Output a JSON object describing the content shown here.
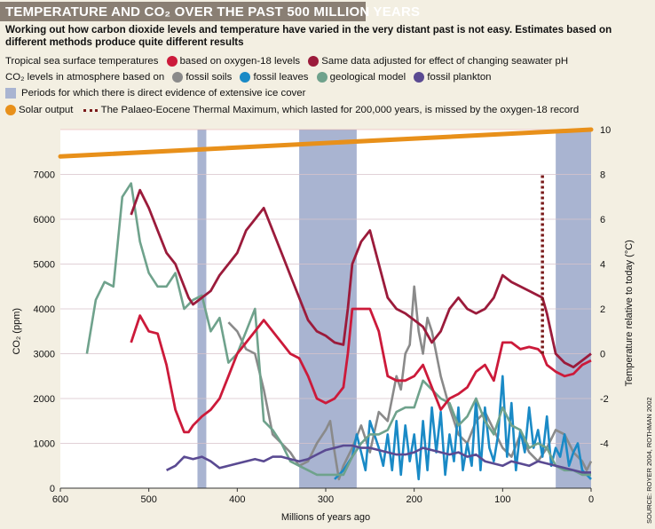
{
  "header": {
    "title": "TEMPERATURE AND CO₂ OVER THE PAST 500 MILLION YEARS",
    "subtitle": "Working out how carbon dioxide levels and temperature have varied in the very distant past is not easy. Estimates based on different methods produce quite different results"
  },
  "legend": {
    "row1_label": "Tropical sea surface temperatures",
    "oxygen": "based on oxygen-18 levels",
    "adjusted": "Same data adjusted for effect of changing seawater pH",
    "row2_label": "CO₂ levels in atmosphere based on",
    "soils": "fossil soils",
    "leaves": "fossil leaves",
    "geo": "geological model",
    "plankton": "fossil plankton",
    "ice": "Periods for which there is direct evidence of extensive ice cover",
    "solar": "Solar output",
    "petm": "The Palaeo-Eocene Thermal Maximum, which lasted for 200,000 years, is missed by the oxygen-18 record"
  },
  "source": "SOURCE: ROYER 2004, ROTHMAN 2002",
  "colors": {
    "oxygen": "#cc1a3a",
    "adjusted": "#9b1b3b",
    "soils": "#8a8a8a",
    "leaves": "#1a8ac6",
    "geo": "#6fa28c",
    "plankton": "#5a4a92",
    "ice": "#a9b4d1",
    "solar": "#e8901a",
    "petm": "#7a1a1a",
    "banner": "#8a7f74"
  },
  "chart_data": {
    "type": "line",
    "xlabel": "Millions of years ago",
    "ylabel_left": "CO₂ (ppm)",
    "ylabel_right": "Temperature relative to today (°C)",
    "xlim": [
      600,
      0
    ],
    "ylim_left": [
      0,
      8000
    ],
    "ylim_right": [
      -6,
      10
    ],
    "x_ticks": [
      600,
      500,
      400,
      300,
      200,
      100,
      0
    ],
    "y_ticks_left": [
      0,
      1000,
      2000,
      3000,
      4000,
      5000,
      6000,
      7000
    ],
    "y_ticks_right": [
      -4,
      -2,
      0,
      2,
      4,
      6,
      8,
      10
    ],
    "ice_periods": [
      [
        445,
        435
      ],
      [
        330,
        265
      ],
      [
        40,
        0
      ]
    ],
    "petm": {
      "x": 55,
      "y_range": [
        0,
        8
      ]
    },
    "temperature_series": [
      {
        "name": "based on oxygen-18 levels",
        "color_key": "oxygen",
        "x": [
          520,
          510,
          500,
          490,
          480,
          470,
          460,
          455,
          450,
          440,
          430,
          420,
          410,
          400,
          390,
          380,
          370,
          360,
          350,
          340,
          330,
          320,
          310,
          300,
          290,
          280,
          275,
          270,
          260,
          250,
          240,
          230,
          220,
          210,
          200,
          190,
          180,
          170,
          160,
          150,
          140,
          130,
          120,
          110,
          100,
          90,
          80,
          70,
          60,
          55,
          50,
          40,
          30,
          20,
          10,
          0
        ],
        "y": [
          0.5,
          1.7,
          1.0,
          0.9,
          -0.5,
          -2.5,
          -3.5,
          -3.5,
          -3.2,
          -2.8,
          -2.5,
          -2.0,
          -1.0,
          0,
          0.5,
          1.0,
          1.5,
          1.0,
          0.5,
          0,
          -0.2,
          -1.0,
          -2.0,
          -2.2,
          -2.0,
          -1.5,
          0,
          2.0,
          2.0,
          2.0,
          1.0,
          -1.0,
          -1.2,
          -1.2,
          -1.0,
          -0.5,
          -1.5,
          -2.5,
          -2.0,
          -1.8,
          -1.5,
          -0.8,
          -0.5,
          -1.2,
          0.5,
          0.5,
          0.2,
          0.3,
          0.2,
          0.0,
          -0.5,
          -0.8,
          -1.0,
          -0.9,
          -0.5,
          -0.3
        ]
      },
      {
        "name": "Same data adjusted for effect of changing seawater pH",
        "color_key": "adjusted",
        "x": [
          520,
          510,
          500,
          490,
          480,
          470,
          460,
          455,
          450,
          440,
          430,
          420,
          410,
          400,
          390,
          380,
          370,
          360,
          350,
          340,
          330,
          320,
          310,
          300,
          290,
          280,
          275,
          270,
          260,
          250,
          240,
          230,
          220,
          210,
          200,
          190,
          180,
          170,
          160,
          150,
          140,
          130,
          120,
          110,
          100,
          90,
          80,
          70,
          60,
          55,
          50,
          40,
          30,
          20,
          10,
          0
        ],
        "y": [
          6.2,
          7.3,
          6.5,
          5.5,
          4.5,
          4.0,
          3.0,
          2.5,
          2.2,
          2.5,
          2.8,
          3.5,
          4.0,
          4.5,
          5.5,
          6.0,
          6.5,
          5.5,
          4.5,
          3.5,
          2.5,
          1.5,
          1.0,
          0.8,
          0.5,
          0.4,
          2.0,
          4.0,
          5.0,
          5.5,
          4.0,
          2.5,
          2.0,
          1.8,
          1.5,
          1.2,
          0.5,
          1.0,
          2.0,
          2.5,
          2.0,
          1.8,
          2.0,
          2.5,
          3.5,
          3.2,
          3.0,
          2.8,
          2.6,
          2.5,
          1.8,
          0,
          -0.4,
          -0.6,
          -0.3,
          0
        ]
      }
    ],
    "co2_series": [
      {
        "name": "fossil soils",
        "color_key": "soils",
        "x": [
          410,
          400,
          390,
          380,
          370,
          360,
          350,
          340,
          330,
          320,
          310,
          300,
          295,
          290,
          285,
          280,
          270,
          260,
          250,
          240,
          230,
          220,
          215,
          210,
          205,
          200,
          195,
          190,
          185,
          180,
          170,
          160,
          150,
          140,
          130,
          120,
          110,
          100,
          90,
          80,
          70,
          60,
          50,
          40,
          30,
          20,
          10,
          5,
          0
        ],
        "y": [
          3700,
          3500,
          3100,
          3000,
          2200,
          1200,
          1000,
          800,
          500,
          600,
          1000,
          1300,
          1500,
          800,
          200,
          500,
          900,
          1400,
          800,
          1700,
          1500,
          2500,
          2200,
          3000,
          3200,
          4500,
          3500,
          3000,
          3800,
          3500,
          2500,
          1800,
          1200,
          1000,
          1500,
          1700,
          1300,
          900,
          700,
          1200,
          800,
          600,
          900,
          1300,
          1200,
          800,
          600,
          400,
          600
        ]
      },
      {
        "name": "fossil leaves",
        "color_key": "leaves",
        "x": [
          290,
          280,
          270,
          265,
          260,
          255,
          250,
          240,
          235,
          230,
          225,
          220,
          215,
          210,
          205,
          200,
          195,
          190,
          185,
          180,
          175,
          170,
          165,
          160,
          155,
          150,
          145,
          140,
          135,
          130,
          125,
          120,
          115,
          110,
          105,
          100,
          95,
          90,
          85,
          80,
          75,
          70,
          65,
          60,
          55,
          50,
          45,
          40,
          35,
          30,
          25,
          20,
          15,
          10,
          5,
          0
        ],
        "y": [
          200,
          400,
          700,
          1200,
          800,
          400,
          1500,
          900,
          500,
          1200,
          400,
          1500,
          300,
          1400,
          600,
          1200,
          200,
          1500,
          400,
          1800,
          800,
          1700,
          300,
          1200,
          600,
          1800,
          400,
          1000,
          500,
          2000,
          400,
          1800,
          900,
          600,
          1200,
          2500,
          700,
          1900,
          400,
          1300,
          800,
          1800,
          900,
          1300,
          700,
          1600,
          500,
          900,
          700,
          1200,
          500,
          800,
          1000,
          400,
          300,
          200
        ]
      },
      {
        "name": "geological model",
        "color_key": "geo",
        "x": [
          570,
          560,
          550,
          540,
          530,
          520,
          510,
          500,
          490,
          480,
          470,
          460,
          450,
          440,
          430,
          420,
          410,
          400,
          390,
          380,
          370,
          360,
          350,
          340,
          330,
          320,
          310,
          300,
          290,
          280,
          270,
          260,
          250,
          240,
          230,
          220,
          210,
          200,
          190,
          180,
          170,
          160,
          150,
          140,
          130,
          120,
          110,
          100,
          90,
          80,
          70,
          60,
          50,
          40,
          30,
          20,
          10,
          0
        ],
        "y": [
          3000,
          4200,
          4600,
          4500,
          6500,
          6800,
          5500,
          4800,
          4500,
          4500,
          4800,
          4000,
          4200,
          4300,
          3500,
          3800,
          2800,
          3000,
          3500,
          4000,
          1500,
          1300,
          1000,
          600,
          500,
          400,
          300,
          300,
          300,
          300,
          700,
          1000,
          1200,
          1200,
          1300,
          1700,
          1800,
          1800,
          2400,
          2200,
          2000,
          1900,
          1400,
          1600,
          2000,
          1500,
          1200,
          1800,
          1400,
          1300,
          900,
          1000,
          900,
          500,
          400,
          400,
          300,
          300
        ]
      },
      {
        "name": "fossil plankton",
        "color_key": "plankton",
        "x": [
          480,
          470,
          460,
          450,
          440,
          430,
          420,
          410,
          400,
          390,
          380,
          370,
          360,
          350,
          340,
          330,
          320,
          310,
          300,
          290,
          280,
          270,
          260,
          250,
          240,
          230,
          220,
          210,
          200,
          190,
          180,
          170,
          160,
          150,
          140,
          130,
          120,
          110,
          100,
          90,
          80,
          70,
          60,
          50,
          40,
          30,
          20,
          10,
          0
        ],
        "y": [
          400,
          500,
          700,
          650,
          700,
          600,
          450,
          500,
          550,
          600,
          650,
          600,
          700,
          700,
          650,
          600,
          650,
          750,
          850,
          900,
          950,
          950,
          900,
          900,
          850,
          800,
          750,
          750,
          800,
          900,
          850,
          800,
          750,
          800,
          700,
          750,
          600,
          550,
          500,
          600,
          550,
          500,
          600,
          550,
          500,
          450,
          400,
          350,
          350
        ]
      }
    ],
    "solar_output": {
      "name": "Solar output",
      "color_key": "solar",
      "x": [
        600,
        0
      ],
      "y": [
        8.8,
        10
      ]
    }
  }
}
